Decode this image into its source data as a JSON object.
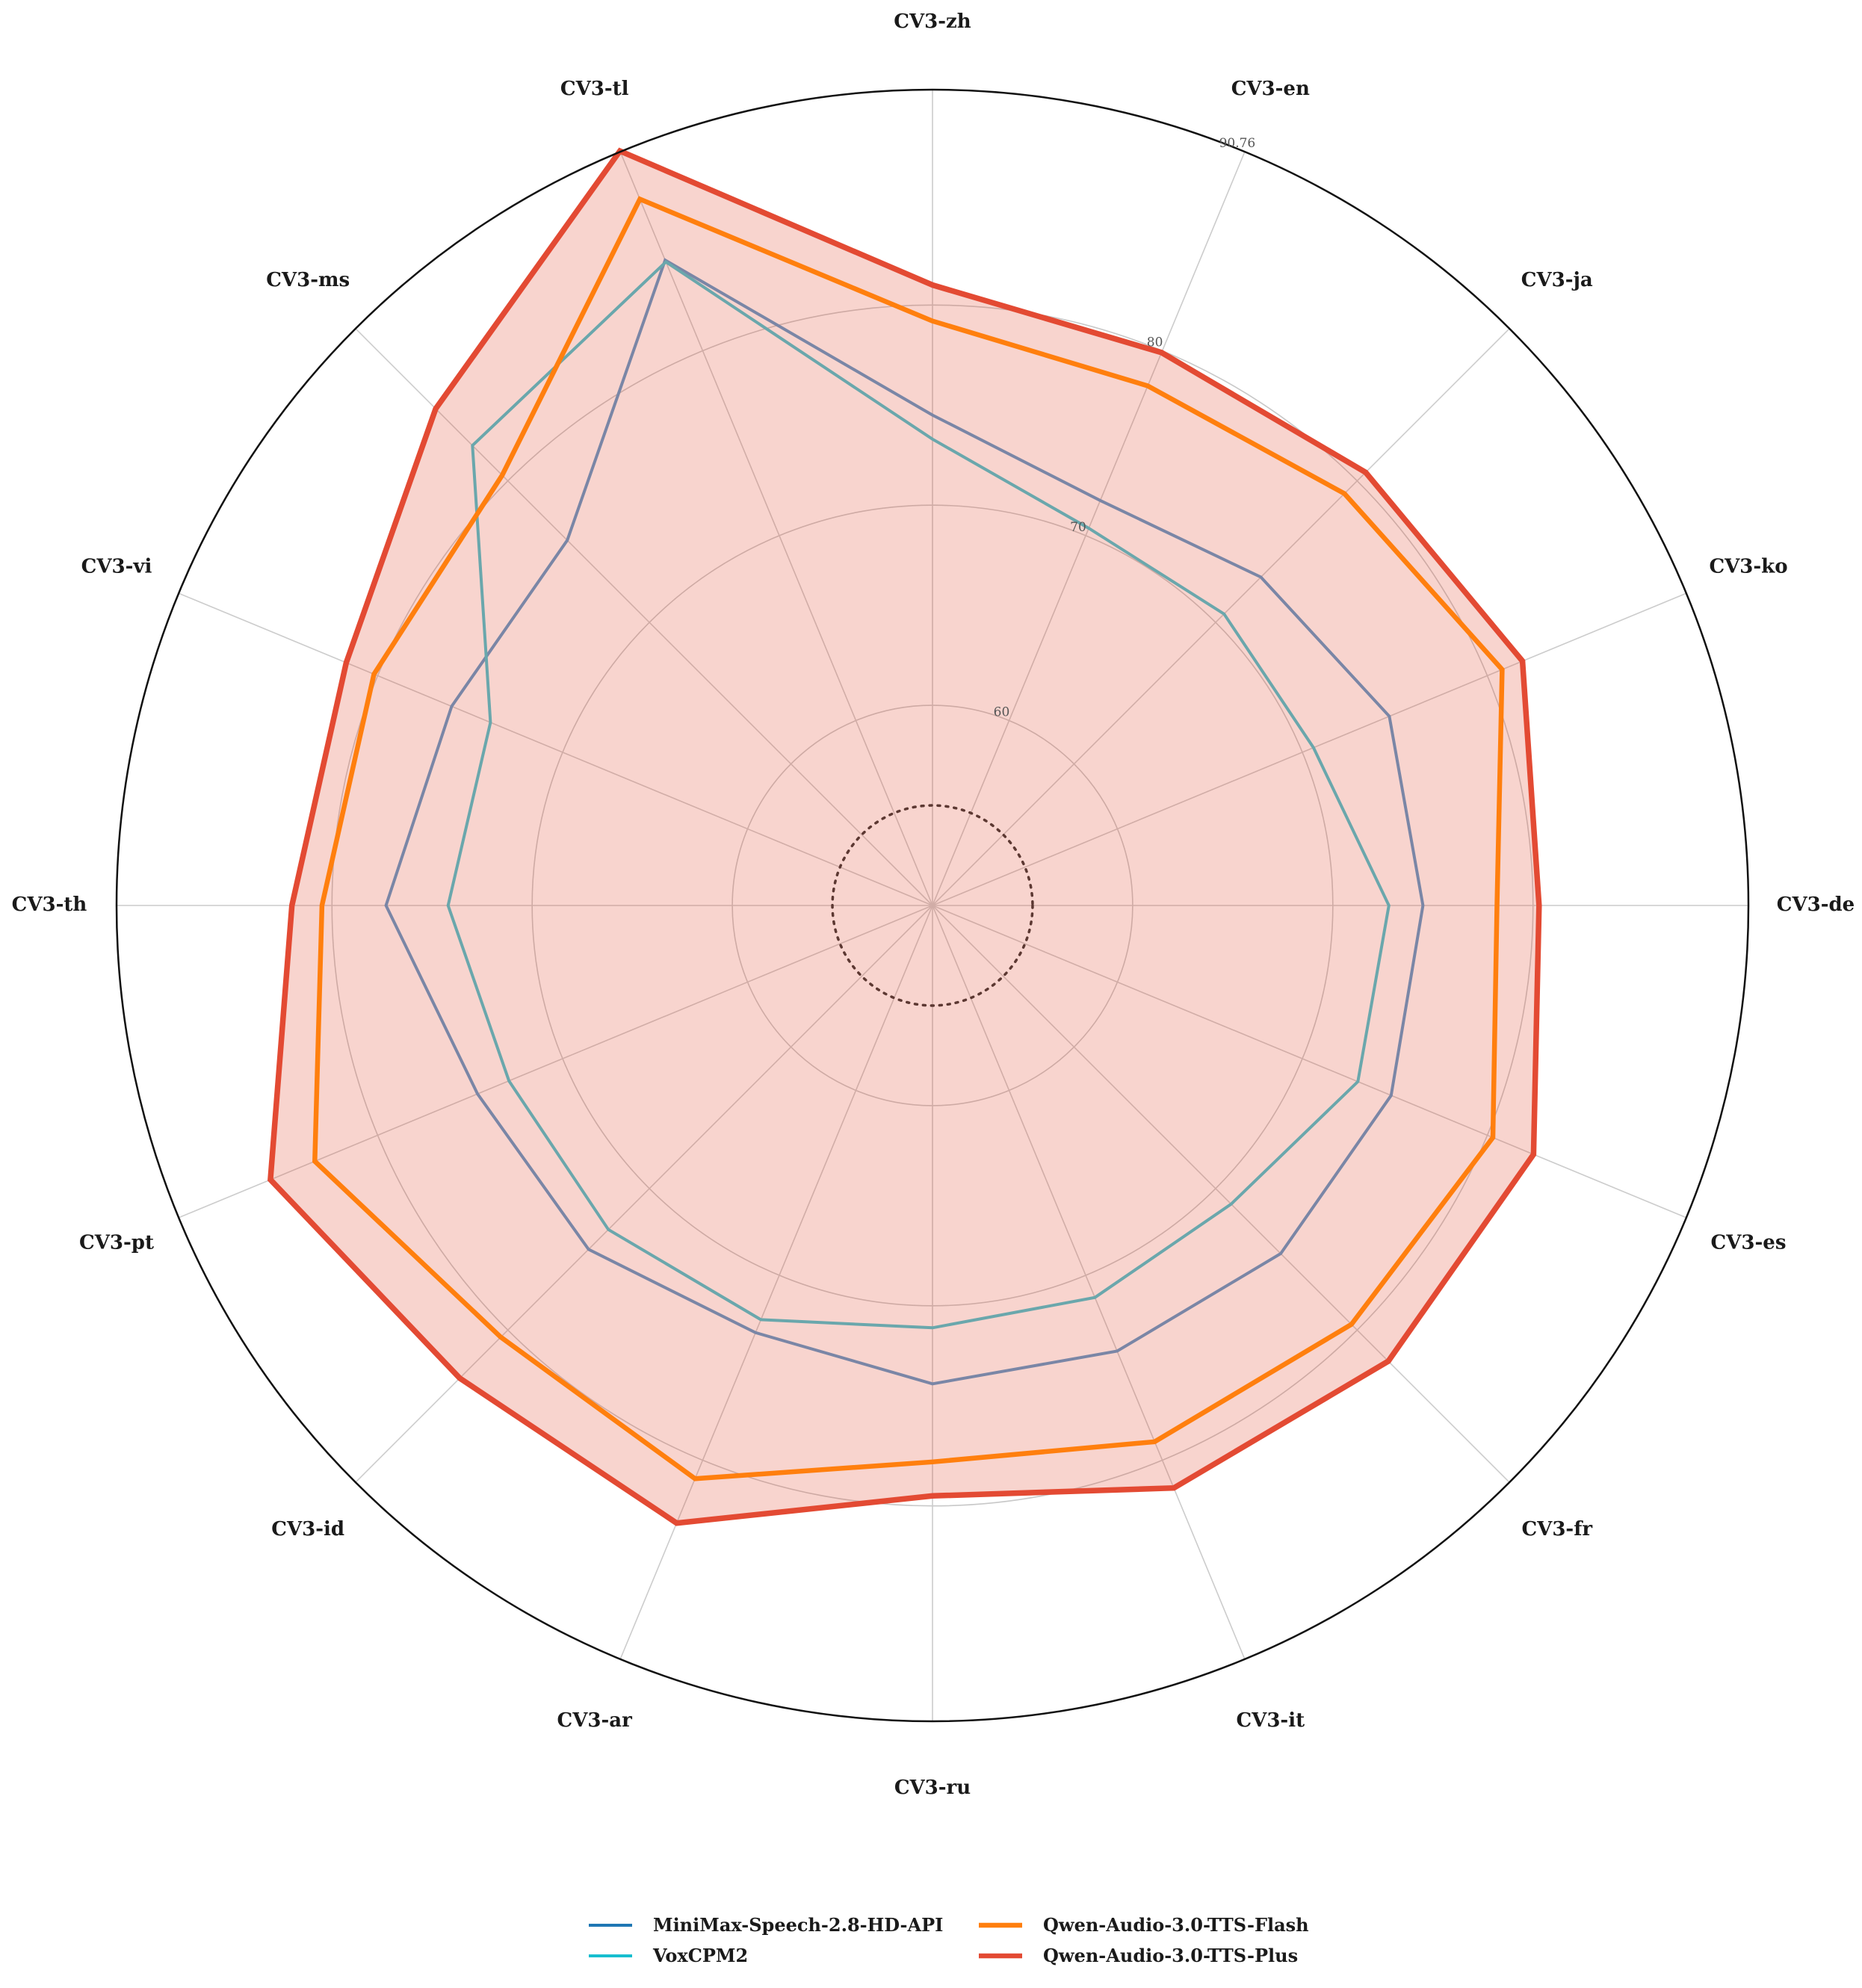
{
  "chart_data": {
    "type": "radar",
    "axes": [
      "CV3-zh",
      "CV3-en",
      "CV3-ja",
      "CV3-ko",
      "CV3-de",
      "CV3-es",
      "CV3-fr",
      "CV3-it",
      "CV3-ru",
      "CV3-ar",
      "CV3-id",
      "CV3-pt",
      "CV3-th",
      "CV3-vi",
      "CV3-ms",
      "CV3-tl"
    ],
    "r_range": [
      50,
      90.76
    ],
    "ticks": [
      60,
      70,
      80
    ],
    "tick_labels": [
      "60",
      "70",
      "80",
      "90.76"
    ],
    "reference_circle_value": 55,
    "grid": true,
    "legend_position": "bottom-center",
    "series": [
      {
        "name": "MiniMax-Speech-2.8-HD-API",
        "color": "#1f77b4",
        "values": [
          74.5,
          71.9,
          73.2,
          74.7,
          74.5,
          74.8,
          74.6,
          74.1,
          73.9,
          73.1,
          74.3,
          74.6,
          77.3,
          76.0,
          75.8,
          84.9
        ]
      },
      {
        "name": "VoxCPM2",
        "color": "#17becf",
        "values": [
          73.3,
          70.4,
          70.6,
          70.6,
          72.8,
          73.0,
          71.1,
          71.2,
          71.1,
          72.4,
          72.9,
          72.9,
          74.2,
          73.9,
          82.5,
          84.8
        ]
      },
      {
        "name": "Qwen-Audio-3.0-TTS-Flash",
        "color": "#ff7f0e",
        "values": [
          79.2,
          78.1,
          79.1,
          80.8,
          78.2,
          80.3,
          79.6,
          79.0,
          77.8,
          81.0,
          80.5,
          83.4,
          80.5,
          80.2,
          80.4,
          88.2
        ]
      },
      {
        "name": "Qwen-Audio-3.0-TTS-Plus",
        "color": "#e34a33",
        "values": [
          81.0,
          79.9,
          80.6,
          81.9,
          80.3,
          82.5,
          82.2,
          81.5,
          79.5,
          83.4,
          83.4,
          85.8,
          82.0,
          81.7,
          85.1,
          90.8
        ]
      }
    ]
  },
  "legend": {
    "items": [
      {
        "label": "MiniMax-Speech-2.8-HD-API",
        "color": "#1f77b4"
      },
      {
        "label": "VoxCPM2",
        "color": "#17becf"
      },
      {
        "label": "Qwen-Audio-3.0-TTS-Flash",
        "color": "#ff7f0e"
      },
      {
        "label": "Qwen-Audio-3.0-TTS-Plus",
        "color": "#e34a33"
      }
    ]
  }
}
